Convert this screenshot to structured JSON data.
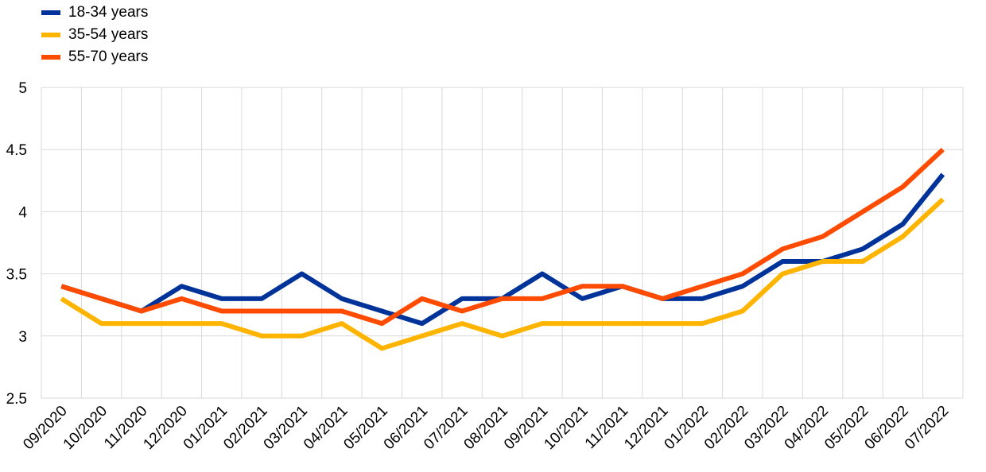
{
  "chart_data": {
    "type": "line",
    "title": "",
    "xlabel": "",
    "ylabel": "",
    "ylim": [
      2.5,
      5
    ],
    "yticks": [
      2.5,
      3,
      3.5,
      4,
      4.5,
      5
    ],
    "ytick_labels": [
      "2.5",
      "3",
      "3.5",
      "4",
      "4.5",
      "5"
    ],
    "grid": true,
    "legend_position": "top-left",
    "categories": [
      "09/2020",
      "10/2020",
      "11/2020",
      "12/2020",
      "01/2021",
      "02/2021",
      "03/2021",
      "04/2021",
      "05/2021",
      "06/2021",
      "07/2021",
      "08/2021",
      "09/2021",
      "10/2021",
      "11/2021",
      "12/2021",
      "01/2022",
      "02/2022",
      "03/2022",
      "04/2022",
      "05/2022",
      "06/2022",
      "07/2022"
    ],
    "series": [
      {
        "name": "18-34 years",
        "color": "#003399",
        "values": [
          3.4,
          3.3,
          3.2,
          3.4,
          3.3,
          3.3,
          3.5,
          3.3,
          3.2,
          3.1,
          3.3,
          3.3,
          3.5,
          3.3,
          3.4,
          3.3,
          3.3,
          3.4,
          3.6,
          3.6,
          3.7,
          3.9,
          4.3
        ]
      },
      {
        "name": "35-54 years",
        "color": "#FFB400",
        "values": [
          3.3,
          3.1,
          3.1,
          3.1,
          3.1,
          3.0,
          3.0,
          3.1,
          2.9,
          3.0,
          3.1,
          3.0,
          3.1,
          3.1,
          3.1,
          3.1,
          3.1,
          3.2,
          3.5,
          3.6,
          3.6,
          3.8,
          4.1
        ]
      },
      {
        "name": "55-70 years",
        "color": "#FF4B00",
        "values": [
          3.4,
          3.3,
          3.2,
          3.3,
          3.2,
          3.2,
          3.2,
          3.2,
          3.1,
          3.3,
          3.2,
          3.3,
          3.3,
          3.4,
          3.4,
          3.3,
          3.4,
          3.5,
          3.7,
          3.8,
          4.0,
          4.2,
          4.5
        ]
      }
    ]
  }
}
